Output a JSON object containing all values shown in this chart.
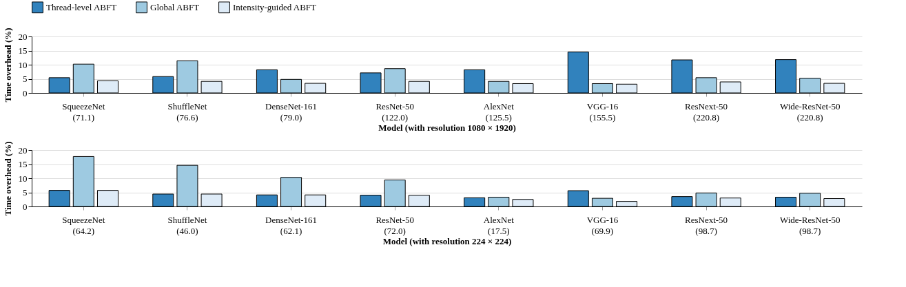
{
  "chart_data": [
    {
      "type": "bar",
      "xlabel": "Model (with resolution 1080 × 1920)",
      "ylabel": "Time overhead (%)",
      "categories": [
        "SqueezeNet\n(71.1)",
        "ShuffleNet\n(76.6)",
        "DenseNet-161\n(79.0)",
        "ResNet-50\n(122.0)",
        "AlexNet\n(125.5)",
        "VGG-16\n(155.5)",
        "ResNext-50\n(220.8)",
        "Wide-ResNet-50\n(220.8)"
      ],
      "ylim": [
        0,
        20
      ],
      "yticks": [
        0,
        5,
        10,
        15,
        20
      ],
      "grid": "y",
      "legend": "top",
      "series": [
        {
          "name": "Thread-level ABFT",
          "color": "#3182bd",
          "values": [
            5.4,
            5.8,
            8.2,
            7.1,
            8.2,
            14.5,
            11.7,
            11.8
          ]
        },
        {
          "name": "Global ABFT",
          "color": "#9ecae1",
          "values": [
            10.2,
            11.4,
            4.8,
            8.6,
            4.1,
            3.3,
            5.4,
            5.2
          ]
        },
        {
          "name": "Intensity-guided ABFT",
          "color": "#deebf7",
          "values": [
            4.3,
            4.1,
            3.4,
            4.1,
            3.3,
            3.1,
            3.9,
            3.4
          ]
        }
      ]
    },
    {
      "type": "bar",
      "xlabel": "Model (with resolution 224 × 224)",
      "ylabel": "Time overhead (%)",
      "categories": [
        "SqueezeNet\n(64.2)",
        "ShuffleNet\n(46.0)",
        "DenseNet-161\n(62.1)",
        "ResNet-50\n(72.0)",
        "AlexNet\n(17.5)",
        "VGG-16\n(69.9)",
        "ResNext-50\n(98.7)",
        "Wide-ResNet-50\n(98.7)"
      ],
      "ylim": [
        0,
        20
      ],
      "yticks": [
        0,
        5,
        10,
        15,
        20
      ],
      "grid": "y",
      "legend": "top",
      "series": [
        {
          "name": "Thread-level ABFT",
          "color": "#3182bd",
          "values": [
            5.7,
            4.4,
            4.1,
            4.0,
            3.1,
            5.6,
            3.5,
            3.3
          ]
        },
        {
          "name": "Global ABFT",
          "color": "#9ecae1",
          "values": [
            17.7,
            14.6,
            10.3,
            9.4,
            3.3,
            2.9,
            4.8,
            4.7
          ]
        },
        {
          "name": "Intensity-guided ABFT",
          "color": "#deebf7",
          "values": [
            5.7,
            4.4,
            4.1,
            4.0,
            2.5,
            1.8,
            3.0,
            2.8
          ]
        }
      ]
    }
  ]
}
